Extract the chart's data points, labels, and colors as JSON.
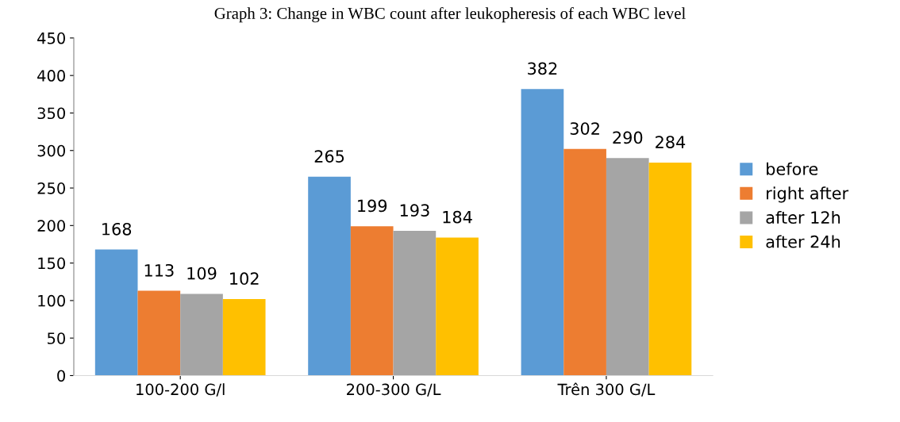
{
  "chart_data": {
    "type": "bar",
    "title": "Graph 3: Change in WBC count after leukopheresis of each WBC level",
    "categories": [
      "100-200 G/l",
      "200-300 G/L",
      "Trên 300 G/L"
    ],
    "series": [
      {
        "name": "before",
        "color": "#5b9bd5",
        "values": [
          168,
          265,
          382
        ]
      },
      {
        "name": "right after",
        "color": "#ed7d31",
        "values": [
          113,
          199,
          302
        ]
      },
      {
        "name": "after 12h",
        "color": "#a5a5a5",
        "values": [
          109,
          193,
          290
        ]
      },
      {
        "name": "after 24h",
        "color": "#ffc000",
        "values": [
          102,
          184,
          284
        ]
      }
    ],
    "ylim": [
      0,
      450
    ],
    "yticks": [
      0,
      50,
      100,
      150,
      200,
      250,
      300,
      350,
      400,
      450
    ],
    "data_labels": true,
    "legend": "right",
    "grid": false
  }
}
